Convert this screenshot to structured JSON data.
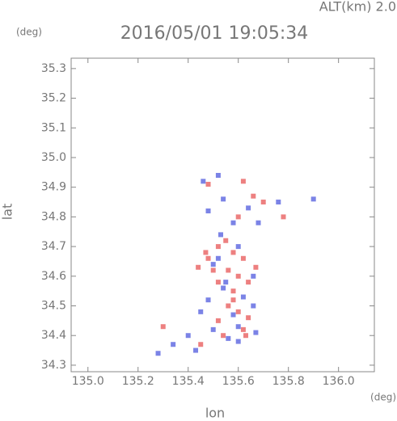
{
  "chart_data": {
    "type": "scatter",
    "title": "2016/05/01 19:05:34",
    "alt_label": "ALT(km) 2.0",
    "y_unit": "(deg)",
    "x_unit": "(deg)",
    "xlabel": "lon",
    "ylabel": "lat",
    "xlim": [
      134.933,
      136.143
    ],
    "ylim": [
      34.278,
      35.335
    ],
    "xticks": [
      {
        "value": 135,
        "label": "135.0"
      },
      135.2,
      135.4,
      135.6,
      135.8,
      {
        "value": 136,
        "label": "136.0"
      }
    ],
    "yticks": [
      34.3,
      34.4,
      34.5,
      34.6,
      34.7,
      34.8,
      34.9,
      {
        "value": 35,
        "label": "35.0"
      },
      35.1,
      35.2,
      35.3
    ],
    "series": [
      {
        "color": "#e86060",
        "x": [
          135.48,
          135.62,
          135.66,
          135.7,
          135.78,
          135.6,
          135.55,
          135.52,
          135.58,
          135.62,
          135.48,
          135.44,
          135.56,
          135.6,
          135.64,
          135.52,
          135.58,
          135.56,
          135.6,
          135.64,
          135.52,
          135.62,
          135.54,
          135.45,
          135.3,
          135.63,
          135.58,
          135.5,
          135.47,
          135.67
        ],
        "values": [
          34.91,
          34.92,
          34.87,
          34.85,
          34.8,
          34.8,
          34.72,
          34.7,
          34.68,
          34.66,
          34.66,
          34.63,
          34.62,
          34.6,
          34.58,
          34.58,
          34.55,
          34.5,
          34.48,
          34.46,
          34.45,
          34.42,
          34.4,
          34.37,
          34.43,
          34.4,
          34.52,
          34.62,
          34.68,
          34.63
        ]
      },
      {
        "color": "#5a64e0",
        "x": [
          135.52,
          135.46,
          135.54,
          135.48,
          135.64,
          135.76,
          135.9,
          135.68,
          135.58,
          135.53,
          135.6,
          135.5,
          135.66,
          135.54,
          135.62,
          135.48,
          135.66,
          135.58,
          135.6,
          135.5,
          135.4,
          135.34,
          135.28,
          135.43,
          135.56,
          135.67,
          135.6,
          135.52,
          135.55,
          135.45
        ],
        "values": [
          34.94,
          34.92,
          34.86,
          34.82,
          34.83,
          34.85,
          34.86,
          34.78,
          34.78,
          34.74,
          34.7,
          34.64,
          34.6,
          34.56,
          34.53,
          34.52,
          34.5,
          34.47,
          34.43,
          34.42,
          34.4,
          34.37,
          34.34,
          34.35,
          34.39,
          34.41,
          34.38,
          34.66,
          34.58,
          34.48
        ]
      }
    ]
  }
}
